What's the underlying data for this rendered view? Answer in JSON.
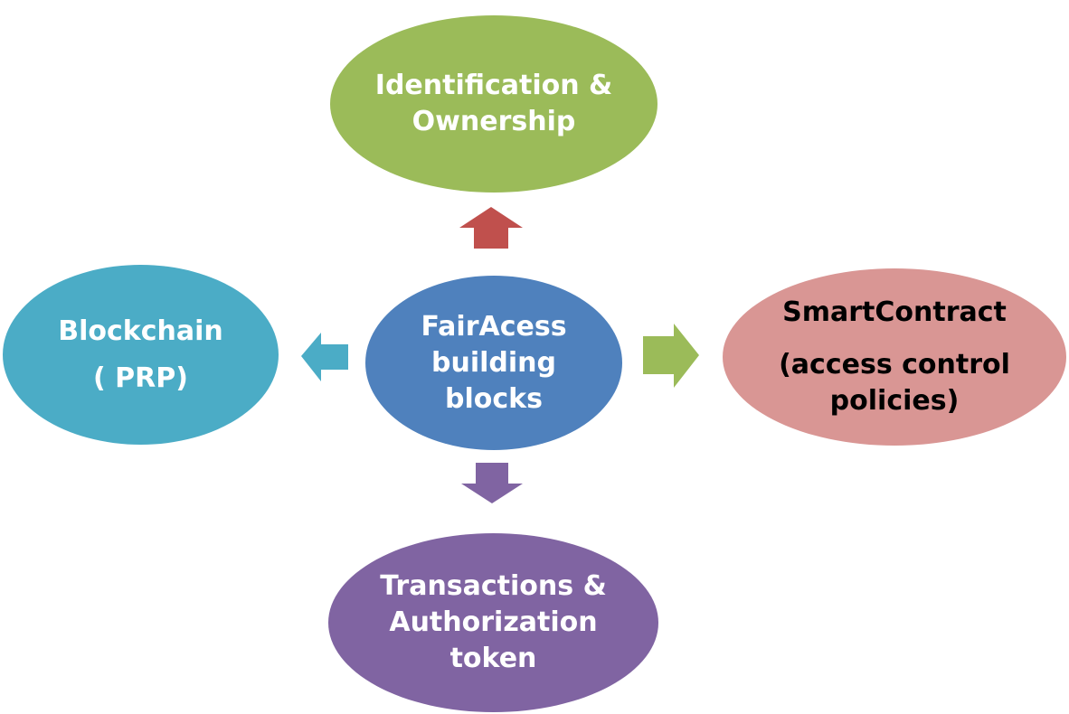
{
  "diagram": {
    "center": {
      "lines": [
        "FairAcess",
        "building",
        "blocks"
      ],
      "color": "#4f81bd"
    },
    "top": {
      "lines": [
        "Identification &",
        "Ownership"
      ],
      "color": "#9bbb59"
    },
    "left": {
      "lines": [
        "Blockchain",
        "( PRP)"
      ],
      "color": "#4bacc6"
    },
    "right": {
      "lines": [
        "SmartContract",
        "(access control",
        "policies)"
      ],
      "color": "#d99694"
    },
    "bottom": {
      "lines": [
        "Transactions &",
        "Authorization",
        "token"
      ],
      "color": "#8064a2"
    },
    "arrows": {
      "up": {
        "color": "#c0504d"
      },
      "left": {
        "color": "#4bacc6"
      },
      "right": {
        "color": "#9bbb59"
      },
      "down": {
        "color": "#8064a2"
      }
    }
  }
}
